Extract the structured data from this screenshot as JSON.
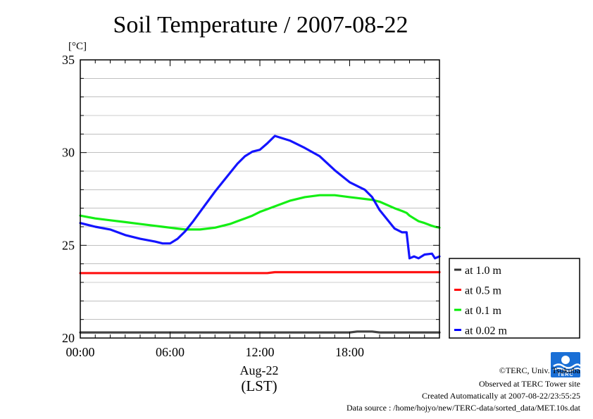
{
  "chart_data": {
    "type": "line",
    "title": "Soil Temperature / 2007-08-22",
    "ylabel": "[°C]",
    "ylim": [
      20,
      35
    ],
    "xlim": [
      "00:00",
      "24:00"
    ],
    "x_ticks": [
      "00:00",
      "06:00",
      "12:00",
      "18:00"
    ],
    "y_ticks": [
      "20",
      "25",
      "30",
      "35"
    ],
    "xlabel_date": "Aug-22",
    "xlabel_tz": "(LST)",
    "legend_position": "right-bottom, outside plot",
    "x": [
      0,
      1,
      2,
      3,
      4,
      5,
      5.5,
      6,
      6.5,
      7,
      7.5,
      8,
      9,
      10,
      10.5,
      11,
      11.5,
      12,
      12.5,
      13,
      14,
      15,
      16,
      17,
      18,
      18.5,
      19,
      19.5,
      20,
      21,
      21.5,
      21.8,
      22,
      22.3,
      22.6,
      23,
      23.5,
      23.7,
      24
    ],
    "series": [
      {
        "name": "at 1.0 m",
        "color": "#333333",
        "values": [
          20.3,
          20.3,
          20.3,
          20.3,
          20.3,
          20.3,
          20.3,
          20.3,
          20.3,
          20.3,
          20.3,
          20.3,
          20.3,
          20.3,
          20.3,
          20.3,
          20.3,
          20.3,
          20.3,
          20.3,
          20.3,
          20.3,
          20.3,
          20.3,
          20.3,
          20.35,
          20.35,
          20.35,
          20.3,
          20.3,
          20.3,
          20.3,
          20.3,
          20.3,
          20.3,
          20.3,
          20.3,
          20.3,
          20.3
        ]
      },
      {
        "name": "at 0.5 m",
        "color": "#ff0000",
        "values": [
          23.5,
          23.5,
          23.5,
          23.5,
          23.5,
          23.5,
          23.5,
          23.5,
          23.5,
          23.5,
          23.5,
          23.5,
          23.5,
          23.5,
          23.5,
          23.5,
          23.5,
          23.5,
          23.5,
          23.55,
          23.55,
          23.55,
          23.55,
          23.55,
          23.55,
          23.55,
          23.55,
          23.55,
          23.55,
          23.55,
          23.55,
          23.55,
          23.55,
          23.55,
          23.55,
          23.55,
          23.55,
          23.55,
          23.55
        ]
      },
      {
        "name": "at 0.1 m",
        "color": "#00ee00",
        "values": [
          26.6,
          26.45,
          26.35,
          26.25,
          26.15,
          26.05,
          26.0,
          25.95,
          25.9,
          25.85,
          25.85,
          25.85,
          25.95,
          26.15,
          26.3,
          26.45,
          26.6,
          26.8,
          26.95,
          27.1,
          27.4,
          27.6,
          27.7,
          27.7,
          27.6,
          27.55,
          27.5,
          27.45,
          27.35,
          27.0,
          26.85,
          26.75,
          26.6,
          26.45,
          26.3,
          26.2,
          26.05,
          26.0,
          25.95
        ]
      },
      {
        "name": "at 0.02 m",
        "color": "#0000ff",
        "values": [
          26.2,
          26.0,
          25.85,
          25.55,
          25.35,
          25.2,
          25.1,
          25.1,
          25.35,
          25.75,
          26.25,
          26.8,
          27.9,
          28.9,
          29.4,
          29.8,
          30.05,
          30.15,
          30.5,
          30.9,
          30.65,
          30.25,
          29.8,
          29.05,
          28.4,
          28.2,
          28.0,
          27.6,
          26.9,
          25.9,
          25.7,
          25.7,
          24.3,
          24.4,
          24.3,
          24.5,
          24.55,
          24.3,
          24.4
        ]
      }
    ]
  },
  "credits": {
    "line1": "©TERC, Univ. Tsukuba",
    "line2": "Observed at TERC Tower site",
    "line3": "Created Automatically at 2007-08-22/23:55:25",
    "line4": "Data source : /home/hojyo/new/TERC-data/sorted_data/MET.10s.dat"
  },
  "logo": {
    "label": "TERC",
    "color": "#1a6fd6"
  }
}
